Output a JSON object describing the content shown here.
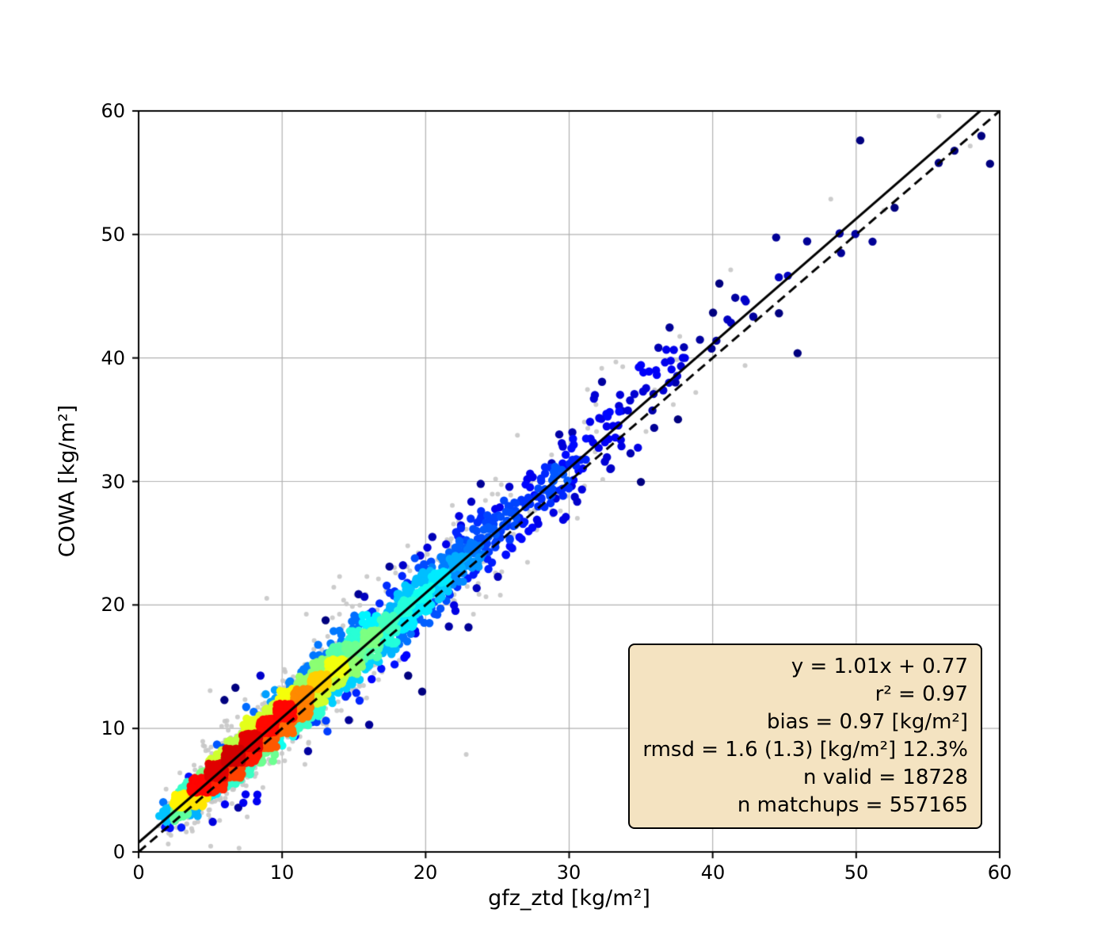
{
  "chart_data": {
    "type": "scatter",
    "title": "",
    "xlabel": "gfz_ztd [kg/m²]",
    "ylabel": "COWA [kg/m²]",
    "xlim": [
      0,
      60
    ],
    "ylim": [
      0,
      60
    ],
    "xticks": [
      0,
      10,
      20,
      30,
      40,
      50,
      60
    ],
    "yticks": [
      0,
      10,
      20,
      30,
      40,
      50,
      60
    ],
    "grid": true,
    "colormap": "jet",
    "fit_line": {
      "label": "y = 1.01x + 0.77",
      "slope": 1.01,
      "intercept": 0.77,
      "color": "#000000",
      "style": "solid"
    },
    "identity_line": {
      "slope": 1,
      "intercept": 0,
      "color": "#000000",
      "style": "dashed"
    },
    "stats": {
      "equation": "y = 1.01x + 0.77",
      "r2": "r² = 0.97",
      "bias": "bias = 0.97 [kg/m²]",
      "rmsd": "rmsd = 1.6 (1.3) [kg/m²] 12.3%",
      "n_valid": "n valid = 18728",
      "n_matchups": "n matchups = 557165"
    },
    "point_cloud": {
      "n_valid": 18728,
      "n_matchups": 557165,
      "relation": "y ≈ 1.01x + 0.77, density-colored scatter; densest (red) core near x = 5–14, spread increases toward high x, sparse dark-blue outliers up to ~(56.5, 59)",
      "x_data_range": [
        0.5,
        58
      ],
      "colors": {
        "low_density": "#00008b",
        "high_density": "#cc0000",
        "background_points": "#c8c8c8",
        "grid": "#b0b0b0",
        "spine": "#000000",
        "stats_box_bg": "#f4e3c1",
        "stats_box_border": "#000000"
      }
    }
  }
}
